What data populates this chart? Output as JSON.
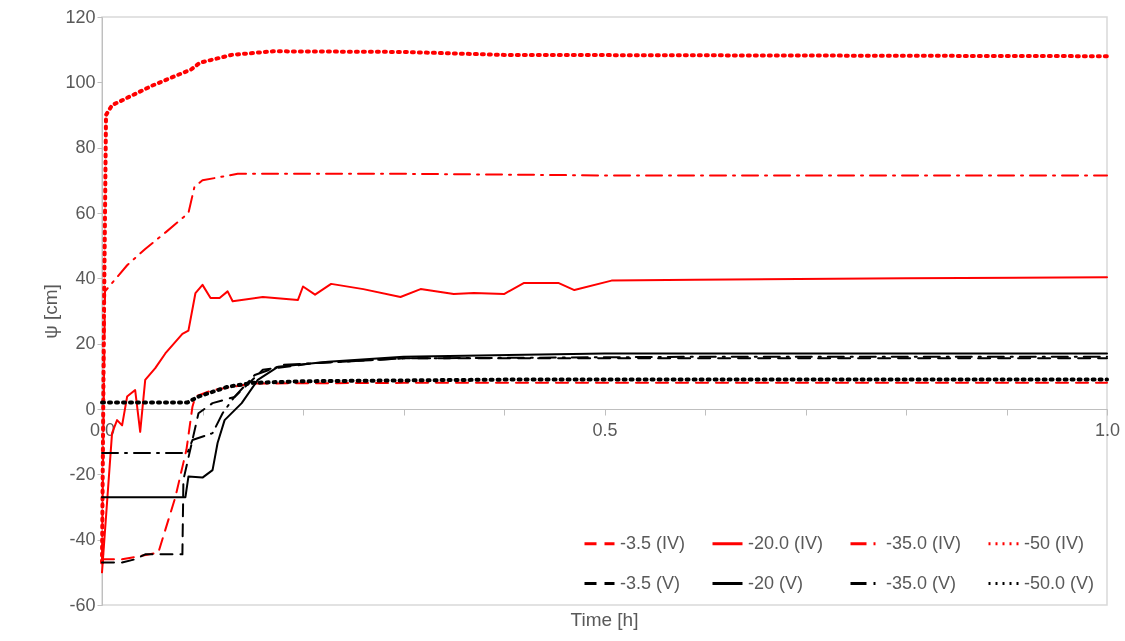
{
  "chart_data": {
    "type": "line",
    "xlabel": "Time [h]",
    "ylabel": "ψ [cm]",
    "xlim": [
      0,
      1
    ],
    "ylim": [
      -60,
      120
    ],
    "xticks": [
      {
        "value": 0,
        "label": "0.0"
      },
      {
        "value": 0.1,
        "label": null
      },
      {
        "value": 0.2,
        "label": null
      },
      {
        "value": 0.3,
        "label": null
      },
      {
        "value": 0.4,
        "label": null
      },
      {
        "value": 0.5,
        "label": "0.5"
      },
      {
        "value": 0.6,
        "label": null
      },
      {
        "value": 0.7,
        "label": null
      },
      {
        "value": 0.8,
        "label": null
      },
      {
        "value": 0.9,
        "label": null
      },
      {
        "value": 1,
        "label": "1.0"
      }
    ],
    "yticks": [
      -60,
      -40,
      -20,
      0,
      20,
      40,
      60,
      80,
      100,
      120
    ],
    "grid": false,
    "legend": "bottom right",
    "marker": "none",
    "series": [
      {
        "name": "-3.5 (IV)",
        "color": "#ff0000",
        "line_style": "dashed",
        "x": [
          0,
          0.02,
          0.056,
          0.073,
          0.084,
          0.09,
          0.093,
          0.11,
          0.15,
          0.3,
          0.5,
          0.7,
          1.0
        ],
        "values": [
          -46,
          -46,
          -44,
          -27,
          -12.5,
          0.7,
          3.8,
          5.8,
          7.8,
          8,
          8,
          8,
          8
        ]
      },
      {
        "name": "-20.0 (IV)",
        "color": "#ff0000",
        "line_style": "solid",
        "x": [
          0,
          0.01,
          0.015,
          0.02,
          0.025,
          0.033,
          0.038,
          0.043,
          0.053,
          0.063,
          0.08,
          0.086,
          0.093,
          0.1,
          0.108,
          0.117,
          0.125,
          0.13,
          0.16,
          0.195,
          0.2,
          0.212,
          0.228,
          0.26,
          0.297,
          0.317,
          0.35,
          0.37,
          0.4,
          0.42,
          0.454,
          0.47,
          0.507,
          0.59,
          0.8,
          1.0
        ],
        "values": [
          -50,
          -7.4,
          -3.4,
          -5,
          3.8,
          5.8,
          -7,
          8.9,
          12.5,
          17,
          23,
          24,
          35.5,
          38,
          34,
          34,
          36,
          33,
          34.3,
          33.4,
          37.5,
          35,
          38.3,
          36.7,
          34.3,
          36.7,
          35.2,
          35.5,
          35.2,
          38.6,
          38.6,
          36.4,
          39.3,
          39.6,
          40,
          40.3
        ]
      },
      {
        "name": "-35.0 (IV)",
        "color": "#ff0000",
        "line_style": "dashdot",
        "x": [
          0,
          0.003,
          0.025,
          0.043,
          0.063,
          0.086,
          0.092,
          0.1,
          0.135,
          0.3,
          0.5,
          0.75,
          1.0
        ],
        "values": [
          -46,
          36,
          44,
          49,
          54,
          60,
          68,
          70,
          72,
          72,
          71.5,
          71.5,
          71.5
        ]
      },
      {
        "name": "-50 (IV)",
        "color": "#ff0000",
        "line_style": "dotted",
        "x": [
          0,
          0.002,
          0.004,
          0.01,
          0.05,
          0.089,
          0.0975,
          0.129,
          0.17,
          0.3,
          0.4,
          0.7,
          1.0
        ],
        "values": [
          -47,
          30,
          90,
          93,
          99,
          104,
          106,
          108.4,
          109.5,
          109.3,
          108.4,
          108.2,
          108
        ]
      },
      {
        "name": "-3.5 (V)",
        "color": "#000000",
        "line_style": "dashed",
        "x": [
          0,
          0.02,
          0.033,
          0.043,
          0.08,
          0.081,
          0.096,
          0.11,
          0.132,
          0.16,
          0.21,
          0.3,
          0.6,
          1.0
        ],
        "values": [
          -47,
          -47,
          -46,
          -44.5,
          -44.5,
          -21.7,
          -1.3,
          1.8,
          3.7,
          12,
          14,
          15.5,
          15.5,
          15.5
        ]
      },
      {
        "name": "-20 (V)",
        "color": "#000000",
        "line_style": "solid",
        "x": [
          0,
          0.083,
          0.086,
          0.1,
          0.11,
          0.115,
          0.122,
          0.139,
          0.155,
          0.175,
          0.225,
          0.3,
          0.5,
          1.0
        ],
        "values": [
          -27,
          -27,
          -20.7,
          -21,
          -18.7,
          -10.4,
          -3.4,
          1.8,
          8.9,
          12.9,
          14.5,
          16,
          17,
          17
        ]
      },
      {
        "name": "-35.0 (V)",
        "color": "#000000",
        "line_style": "dashdot",
        "x": [
          0,
          0.085,
          0.09,
          0.11,
          0.12,
          0.132,
          0.152,
          0.18,
          0.3,
          0.6,
          1.0
        ],
        "values": [
          -13.5,
          -13.5,
          -9.5,
          -7.4,
          -1.3,
          3.8,
          10.4,
          13.5,
          15.5,
          16,
          16
        ]
      },
      {
        "name": "-50.0 (V)",
        "color": "#000000",
        "line_style": "dotted",
        "x": [
          0,
          0.085,
          0.096,
          0.125,
          0.15,
          0.2,
          0.4,
          1.0
        ],
        "values": [
          2,
          2,
          3.8,
          6.8,
          8,
          8.5,
          9,
          9
        ]
      }
    ]
  }
}
